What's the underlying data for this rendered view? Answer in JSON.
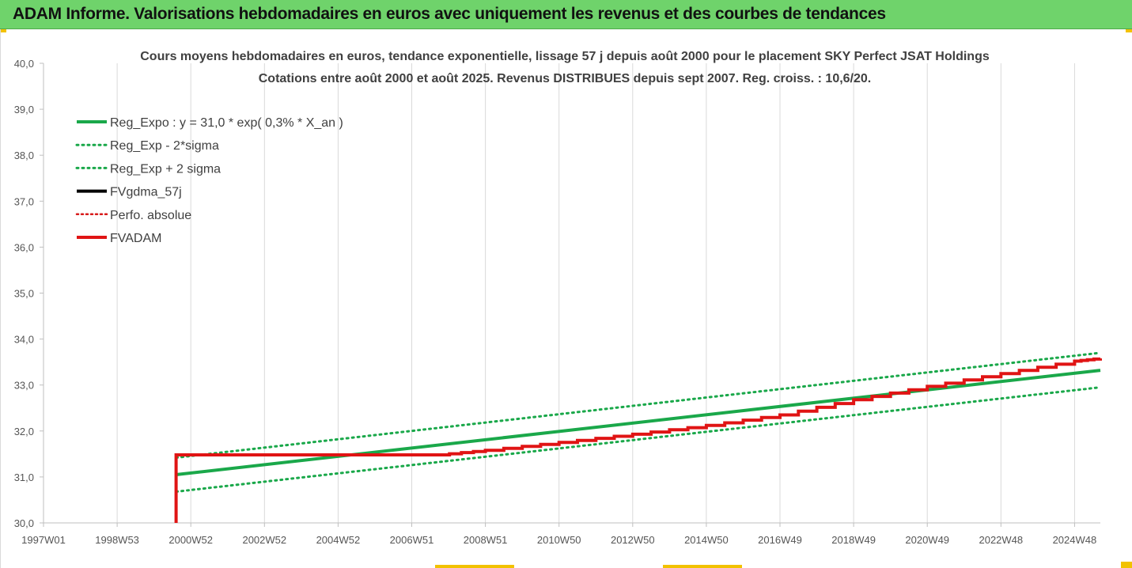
{
  "header": {
    "title": "ADAM Informe. Valorisations hebdomadaires en euros avec uniquement les revenus et des courbes de tendances"
  },
  "colors": {
    "banner": "#6fd36b",
    "reg_expo": "#1aa84a",
    "band": "#1aa84a",
    "fvgdma": "#000000",
    "perfo": "#d71a1a",
    "fvadam": "#e01414",
    "accent": "#f2c200"
  },
  "chart_data": {
    "type": "line",
    "title": "Cours moyens hebdomadaires en euros, tendance exponentielle, lissage 57 j depuis août 2000 pour le placement SKY Perfect JSAT Holdings",
    "subtitle": "Cotations entre août 2000 et août 2025. Revenus DISTRIBUES depuis sept 2007. Reg. croiss. : 10,6/20.",
    "xlabel": "",
    "ylabel": "",
    "ylim": [
      30,
      40
    ],
    "yticks": [
      "30,0",
      "31,0",
      "32,0",
      "33,0",
      "34,0",
      "35,0",
      "36,0",
      "37,0",
      "38,0",
      "39,0",
      "40,0"
    ],
    "xlim": [
      1997.0,
      2025.7
    ],
    "xticks": [
      {
        "label": "1997W01",
        "x": 1997.0
      },
      {
        "label": "1998W53",
        "x": 1999.0
      },
      {
        "label": "2000W52",
        "x": 2001.0
      },
      {
        "label": "2002W52",
        "x": 2003.0
      },
      {
        "label": "2004W52",
        "x": 2005.0
      },
      {
        "label": "2006W51",
        "x": 2007.0
      },
      {
        "label": "2008W51",
        "x": 2009.0
      },
      {
        "label": "2010W50",
        "x": 2011.0
      },
      {
        "label": "2012W50",
        "x": 2013.0
      },
      {
        "label": "2014W50",
        "x": 2015.0
      },
      {
        "label": "2016W49",
        "x": 2017.0
      },
      {
        "label": "2018W49",
        "x": 2019.0
      },
      {
        "label": "2020W49",
        "x": 2021.0
      },
      {
        "label": "2022W48",
        "x": 2023.0
      },
      {
        "label": "2024W48",
        "x": 2025.0
      }
    ],
    "grid": "vertical",
    "legend_position": "top-left",
    "series": [
      {
        "name": "Reg_Expo : y = 31,0 * exp( 0,3% *  X_an )",
        "style": "solid",
        "x": [
          2000.6,
          2025.7
        ],
        "y": [
          31.05,
          33.32
        ]
      },
      {
        "name": "Reg_Exp - 2*sigma",
        "style": "dotted",
        "x": [
          2000.6,
          2025.7
        ],
        "y": [
          30.68,
          32.95
        ]
      },
      {
        "name": "Reg_Exp + 2 sigma",
        "style": "dotted",
        "x": [
          2000.6,
          2025.7
        ],
        "y": [
          31.42,
          33.7
        ]
      },
      {
        "name": "FVgdma_57j",
        "style": "solid",
        "x": [],
        "y": []
      },
      {
        "name": "Perfo. absolue",
        "style": "dotted",
        "x": [],
        "y": []
      },
      {
        "name": "FVADAM",
        "style": "solid",
        "x": [
          2000.6,
          2000.6,
          2007.7,
          2009.0,
          2011.0,
          2013.0,
          2015.0,
          2017.0,
          2019.0,
          2021.0,
          2023.0,
          2025.0,
          2025.7
        ],
        "y": [
          30.0,
          31.48,
          31.48,
          31.58,
          31.75,
          31.93,
          32.12,
          32.35,
          32.68,
          32.97,
          33.25,
          33.52,
          33.58
        ]
      }
    ]
  }
}
